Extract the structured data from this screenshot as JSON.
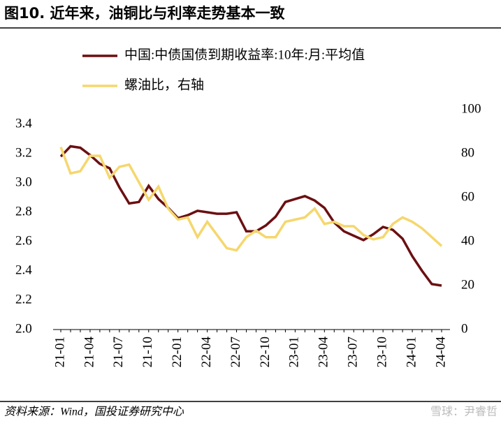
{
  "chart_data": {
    "type": "line",
    "title": "图10. 近年来，油铜比与利率走势基本一致",
    "source": "资料来源：Wind，国投证券研究中心",
    "watermark": "雪球：尹睿哲",
    "categories": [
      "21-01",
      null,
      null,
      "21-04",
      null,
      null,
      "21-07",
      null,
      null,
      "21-10",
      null,
      null,
      "22-01",
      null,
      null,
      "22-04",
      null,
      null,
      "22-07",
      null,
      null,
      "22-10",
      null,
      null,
      "23-01",
      null,
      null,
      "23-04",
      null,
      null,
      "23-07",
      null,
      null,
      "23-10",
      null,
      null,
      "24-01",
      null,
      null,
      "24-04"
    ],
    "series": [
      {
        "name": "中国:中债国债到期收益率:10年:月:平均值",
        "color": "#6b0f12",
        "values": [
          3.18,
          3.25,
          3.24,
          3.19,
          3.13,
          3.1,
          2.97,
          2.86,
          2.87,
          2.98,
          2.89,
          2.83,
          2.76,
          2.78,
          2.81,
          2.8,
          2.79,
          2.79,
          2.8,
          2.67,
          2.67,
          2.71,
          2.77,
          2.87,
          2.89,
          2.91,
          2.88,
          2.83,
          2.73,
          2.67,
          2.64,
          2.61,
          2.65,
          2.7,
          2.68,
          2.62,
          2.5,
          2.4,
          2.31,
          2.3
        ]
      },
      {
        "name": "螺油比，右轴",
        "color": "#f5d76e",
        "axis": "y2",
        "values": [
          83,
          71,
          72,
          79,
          79,
          69,
          74,
          75,
          67,
          59,
          65,
          55,
          50,
          51,
          42,
          49,
          43,
          37,
          36,
          42,
          45,
          42,
          42,
          49,
          50,
          51,
          55,
          48,
          49,
          47,
          47,
          43,
          41,
          42,
          48,
          51,
          49,
          46,
          42,
          38
        ]
      }
    ],
    "ylim": [
      2.0,
      3.5
    ],
    "yticks": [
      {
        "value": 2.0,
        "label": "2.0"
      },
      2.2,
      2.4,
      2.6,
      2.8,
      {
        "value": 3.0,
        "label": "3.0"
      },
      3.2,
      3.4
    ],
    "y2lim": [
      0,
      100
    ],
    "y2ticks": [
      0,
      20,
      40,
      60,
      80,
      100
    ]
  }
}
